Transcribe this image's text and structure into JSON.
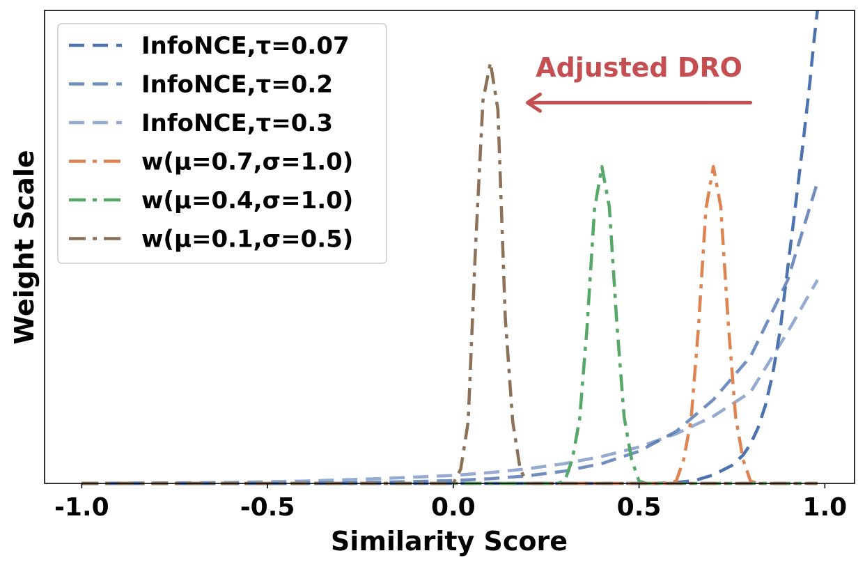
{
  "chart_data": {
    "type": "line",
    "title": "",
    "xlabel": "Similarity Score",
    "ylabel": "Weight Scale",
    "xlim": [
      -1.1,
      1.08
    ],
    "ylim": [
      0,
      1.0
    ],
    "xticks": [
      -1.0,
      -0.5,
      0.0,
      0.5,
      1.0
    ],
    "xtick_labels": [
      "-1.0",
      "-0.5",
      "0.0",
      "0.5",
      "1.0"
    ],
    "yticks_visible": false,
    "grid": false,
    "legend_position": "top-left",
    "series": [
      {
        "name": "InfoNCE,τ=0.07",
        "color": "#4c72b0",
        "opacity": 1.0,
        "dash": "dashed",
        "x": [
          -1.0,
          0.2,
          0.55,
          0.6,
          0.65,
          0.7,
          0.75,
          0.78,
          0.8,
          0.82,
          0.84,
          0.86,
          0.88,
          0.9,
          0.92,
          0.94,
          0.96,
          0.97,
          0.98
        ],
        "y": [
          0.0,
          0.0,
          0.0,
          0.002,
          0.006,
          0.018,
          0.038,
          0.06,
          0.083,
          0.117,
          0.165,
          0.232,
          0.325,
          0.455,
          0.58,
          0.71,
          0.85,
          0.93,
          1.0
        ]
      },
      {
        "name": "InfoNCE,τ=0.2",
        "color": "#4c72b0",
        "opacity": 0.8,
        "dash": "dashed",
        "x": [
          -1.0,
          -0.5,
          -0.3,
          -0.1,
          0.0,
          0.1,
          0.2,
          0.3,
          0.4,
          0.5,
          0.6,
          0.7,
          0.8,
          0.9,
          0.98
        ],
        "y": [
          0.0,
          0.0,
          0.001,
          0.004,
          0.006,
          0.01,
          0.016,
          0.026,
          0.042,
          0.068,
          0.11,
          0.177,
          0.268,
          0.43,
          0.637
        ]
      },
      {
        "name": "InfoNCE,τ=0.3",
        "color": "#4c72b0",
        "opacity": 0.6,
        "dash": "dashed",
        "x": [
          -1.0,
          -0.6,
          -0.4,
          -0.2,
          0.0,
          0.1,
          0.2,
          0.3,
          0.4,
          0.5,
          0.6,
          0.7,
          0.8,
          0.9,
          0.98
        ],
        "y": [
          0.0,
          0.002,
          0.005,
          0.01,
          0.017,
          0.023,
          0.031,
          0.042,
          0.057,
          0.077,
          0.105,
          0.142,
          0.193,
          0.32,
          0.43
        ]
      },
      {
        "name": "w(μ=0.7,σ=1.0)",
        "color": "#dd8452",
        "opacity": 1.0,
        "dash": "dashdot",
        "x": [
          -1.0,
          0.58,
          0.6,
          0.62,
          0.64,
          0.66,
          0.68,
          0.7,
          0.72,
          0.74,
          0.76,
          0.78,
          0.8,
          0.82,
          0.98
        ],
        "y": [
          0.0,
          0.0,
          0.005,
          0.05,
          0.135,
          0.33,
          0.58,
          0.67,
          0.585,
          0.34,
          0.14,
          0.05,
          0.005,
          0.0,
          0.0
        ]
      },
      {
        "name": "w(μ=0.4,σ=1.0)",
        "color": "#55a868",
        "opacity": 1.0,
        "dash": "dashdot",
        "x": [
          -1.0,
          0.28,
          0.3,
          0.32,
          0.34,
          0.36,
          0.38,
          0.4,
          0.42,
          0.44,
          0.46,
          0.48,
          0.5,
          0.52,
          0.98
        ],
        "y": [
          0.0,
          0.0,
          0.005,
          0.05,
          0.135,
          0.33,
          0.58,
          0.67,
          0.585,
          0.34,
          0.14,
          0.05,
          0.005,
          0.0,
          0.0
        ]
      },
      {
        "name": "w(μ=0.1,σ=0.5)",
        "color": "#8c7058",
        "opacity": 1.0,
        "dash": "dashdot",
        "x": [
          -1.0,
          0.0,
          0.02,
          0.04,
          0.06,
          0.08,
          0.1,
          0.12,
          0.14,
          0.16,
          0.18,
          0.2,
          0.98
        ],
        "y": [
          0.0,
          0.0,
          0.03,
          0.13,
          0.5,
          0.81,
          0.89,
          0.79,
          0.35,
          0.13,
          0.03,
          0.0,
          0.0
        ]
      }
    ],
    "annotations": [
      {
        "text": "Adjusted DRO",
        "color": "#c44e52",
        "x": 0.5,
        "y": 0.86,
        "arrow_from": [
          0.8,
          0.805
        ],
        "arrow_to": [
          0.2,
          0.805
        ]
      }
    ]
  }
}
